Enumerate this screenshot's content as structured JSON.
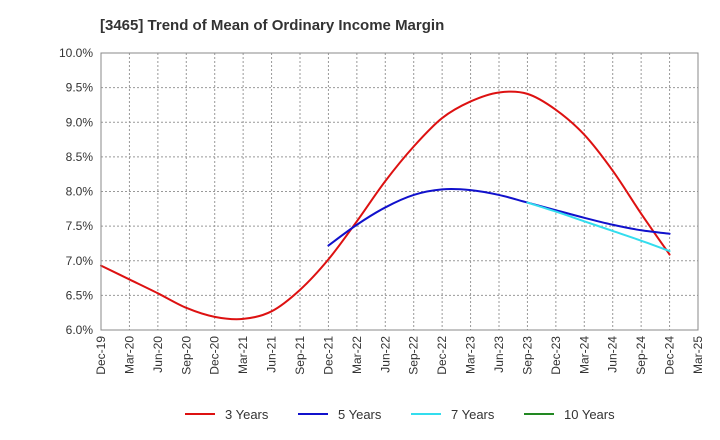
{
  "chart_data": {
    "type": "line",
    "title": "[3465]  Trend of Mean of Ordinary Income Margin",
    "xlabel": "",
    "ylabel": "",
    "ylim": [
      6.0,
      10.0
    ],
    "y_ticks": [
      "6.0%",
      "6.5%",
      "7.0%",
      "7.5%",
      "8.0%",
      "8.5%",
      "9.0%",
      "9.5%",
      "10.0%"
    ],
    "x_ticks": [
      "Dec-19",
      "Mar-20",
      "Jun-20",
      "Sep-20",
      "Dec-20",
      "Mar-21",
      "Jun-21",
      "Sep-21",
      "Dec-21",
      "Mar-22",
      "Jun-22",
      "Sep-22",
      "Dec-22",
      "Mar-23",
      "Jun-23",
      "Sep-23",
      "Dec-23",
      "Mar-24",
      "Jun-24",
      "Sep-24",
      "Dec-24",
      "Mar-25"
    ],
    "grid": true,
    "legend_position": "bottom",
    "series": [
      {
        "name": "3 Years",
        "color": "#dd1111",
        "points": [
          [
            "Dec-19",
            6.93
          ],
          [
            "Mar-20",
            6.73
          ],
          [
            "Jun-20",
            6.53
          ],
          [
            "Sep-20",
            6.32
          ],
          [
            "Dec-20",
            6.19
          ],
          [
            "Mar-21",
            6.16
          ],
          [
            "Jun-21",
            6.27
          ],
          [
            "Sep-21",
            6.58
          ],
          [
            "Dec-21",
            7.02
          ],
          [
            "Mar-22",
            7.57
          ],
          [
            "Jun-22",
            8.15
          ],
          [
            "Sep-22",
            8.65
          ],
          [
            "Dec-22",
            9.06
          ],
          [
            "Mar-23",
            9.3
          ],
          [
            "Jun-23",
            9.43
          ],
          [
            "Sep-23",
            9.41
          ],
          [
            "Dec-23",
            9.18
          ],
          [
            "Mar-24",
            8.82
          ],
          [
            "Jun-24",
            8.3
          ],
          [
            "Sep-24",
            7.68
          ],
          [
            "Dec-24",
            7.09
          ]
        ]
      },
      {
        "name": "5 Years",
        "color": "#1111cc",
        "points": [
          [
            "Dec-21",
            7.22
          ],
          [
            "Mar-22",
            7.52
          ],
          [
            "Jun-22",
            7.77
          ],
          [
            "Sep-22",
            7.95
          ],
          [
            "Dec-22",
            8.03
          ],
          [
            "Mar-23",
            8.02
          ],
          [
            "Jun-23",
            7.95
          ],
          [
            "Sep-23",
            7.84
          ],
          [
            "Dec-23",
            7.73
          ],
          [
            "Mar-24",
            7.62
          ],
          [
            "Jun-24",
            7.52
          ],
          [
            "Sep-24",
            7.44
          ],
          [
            "Dec-24",
            7.39
          ]
        ]
      },
      {
        "name": "7 Years",
        "color": "#33ddee",
        "points": [
          [
            "Sep-23",
            7.84
          ],
          [
            "Dec-23",
            7.71
          ],
          [
            "Mar-24",
            7.57
          ],
          [
            "Jun-24",
            7.43
          ],
          [
            "Sep-24",
            7.29
          ],
          [
            "Dec-24",
            7.14
          ]
        ]
      },
      {
        "name": "10 Years",
        "color": "#228822",
        "points": []
      }
    ]
  }
}
